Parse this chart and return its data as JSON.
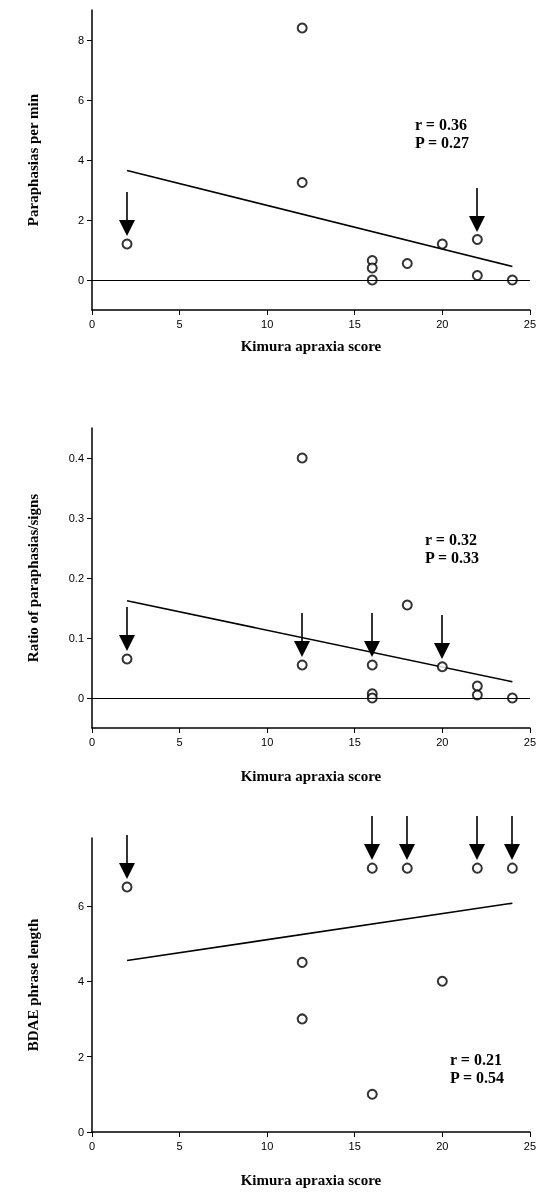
{
  "chart_data": [
    {
      "type": "scatter",
      "ylabel": "Paraphasias per min",
      "xlabel": "Kimura apraxia score",
      "annotations": [
        "r = 0.36\nP = 0.27"
      ],
      "xlim": [
        0,
        25
      ],
      "xticks": [
        0,
        5,
        10,
        15,
        20,
        25
      ],
      "ylim": [
        -1,
        9
      ],
      "yticks": [
        0,
        2,
        4,
        6,
        8
      ],
      "marker": "circle",
      "grid": false,
      "ref_lines": [
        {
          "axis": "y",
          "value": 0,
          "color": "#000000"
        }
      ],
      "series": [
        {
          "color": "#000000",
          "x": [
            12,
            12,
            16,
            16,
            16,
            18,
            20,
            22,
            24
          ],
          "values": [
            8.4,
            3.25,
            0.65,
            0.4,
            0,
            0.55,
            1.2,
            0.15,
            0
          ]
        },
        {
          "color": "#000000",
          "x": [
            2,
            22
          ],
          "values": [
            1.2,
            1.35
          ]
        },
        {
          "type": "line",
          "marker": "none",
          "color": "#000000",
          "x": [
            2,
            24
          ],
          "values": [
            3.65,
            0.45
          ]
        }
      ]
    },
    {
      "type": "scatter",
      "ylabel": "Ratio of paraphasias/signs",
      "xlabel": "Kimura apraxia score",
      "annotations": [
        "r = 0.32\nP = 0.33"
      ],
      "xlim": [
        0,
        25
      ],
      "xticks": [
        0,
        5,
        10,
        15,
        20,
        25
      ],
      "ylim": [
        -0.05,
        0.45
      ],
      "yticks": [
        0,
        0.1,
        0.2,
        0.3,
        0.4
      ],
      "marker": "circle",
      "grid": false,
      "ref_lines": [
        {
          "axis": "y",
          "value": 0,
          "color": "#000000"
        }
      ],
      "series": [
        {
          "color": "#000000",
          "x": [
            12,
            16,
            16,
            18,
            22,
            22,
            24
          ],
          "values": [
            0.4,
            0.007,
            0,
            0.155,
            0.02,
            0.005,
            0
          ]
        },
        {
          "color": "#000000",
          "x": [
            2,
            12,
            16,
            20
          ],
          "values": [
            0.065,
            0.055,
            0.055,
            0.052
          ]
        },
        {
          "type": "line",
          "marker": "none",
          "color": "#000000",
          "x": [
            2,
            24
          ],
          "values": [
            0.162,
            0.027
          ]
        }
      ]
    },
    {
      "type": "scatter",
      "ylabel": "BDAE phrase length",
      "xlabel": "Kimura apraxia score",
      "annotations": [
        "r = 0.21\nP = 0.54"
      ],
      "xlim": [
        0,
        25
      ],
      "xticks": [
        0,
        5,
        10,
        15,
        20,
        25
      ],
      "ylim": [
        0,
        7.8
      ],
      "yticks": [
        0,
        2,
        4,
        6
      ],
      "marker": "circle",
      "grid": false,
      "series": [
        {
          "color": "#000000",
          "x": [
            12,
            12,
            16,
            20
          ],
          "values": [
            4.5,
            3,
            1,
            4
          ]
        },
        {
          "color": "#000000",
          "x": [
            2,
            16,
            18,
            22,
            24
          ],
          "values": [
            6.5,
            7,
            7,
            7,
            7
          ]
        },
        {
          "type": "line",
          "marker": "none",
          "color": "#000000",
          "x": [
            2,
            24
          ],
          "values": [
            4.55,
            6.07
          ]
        }
      ]
    }
  ]
}
